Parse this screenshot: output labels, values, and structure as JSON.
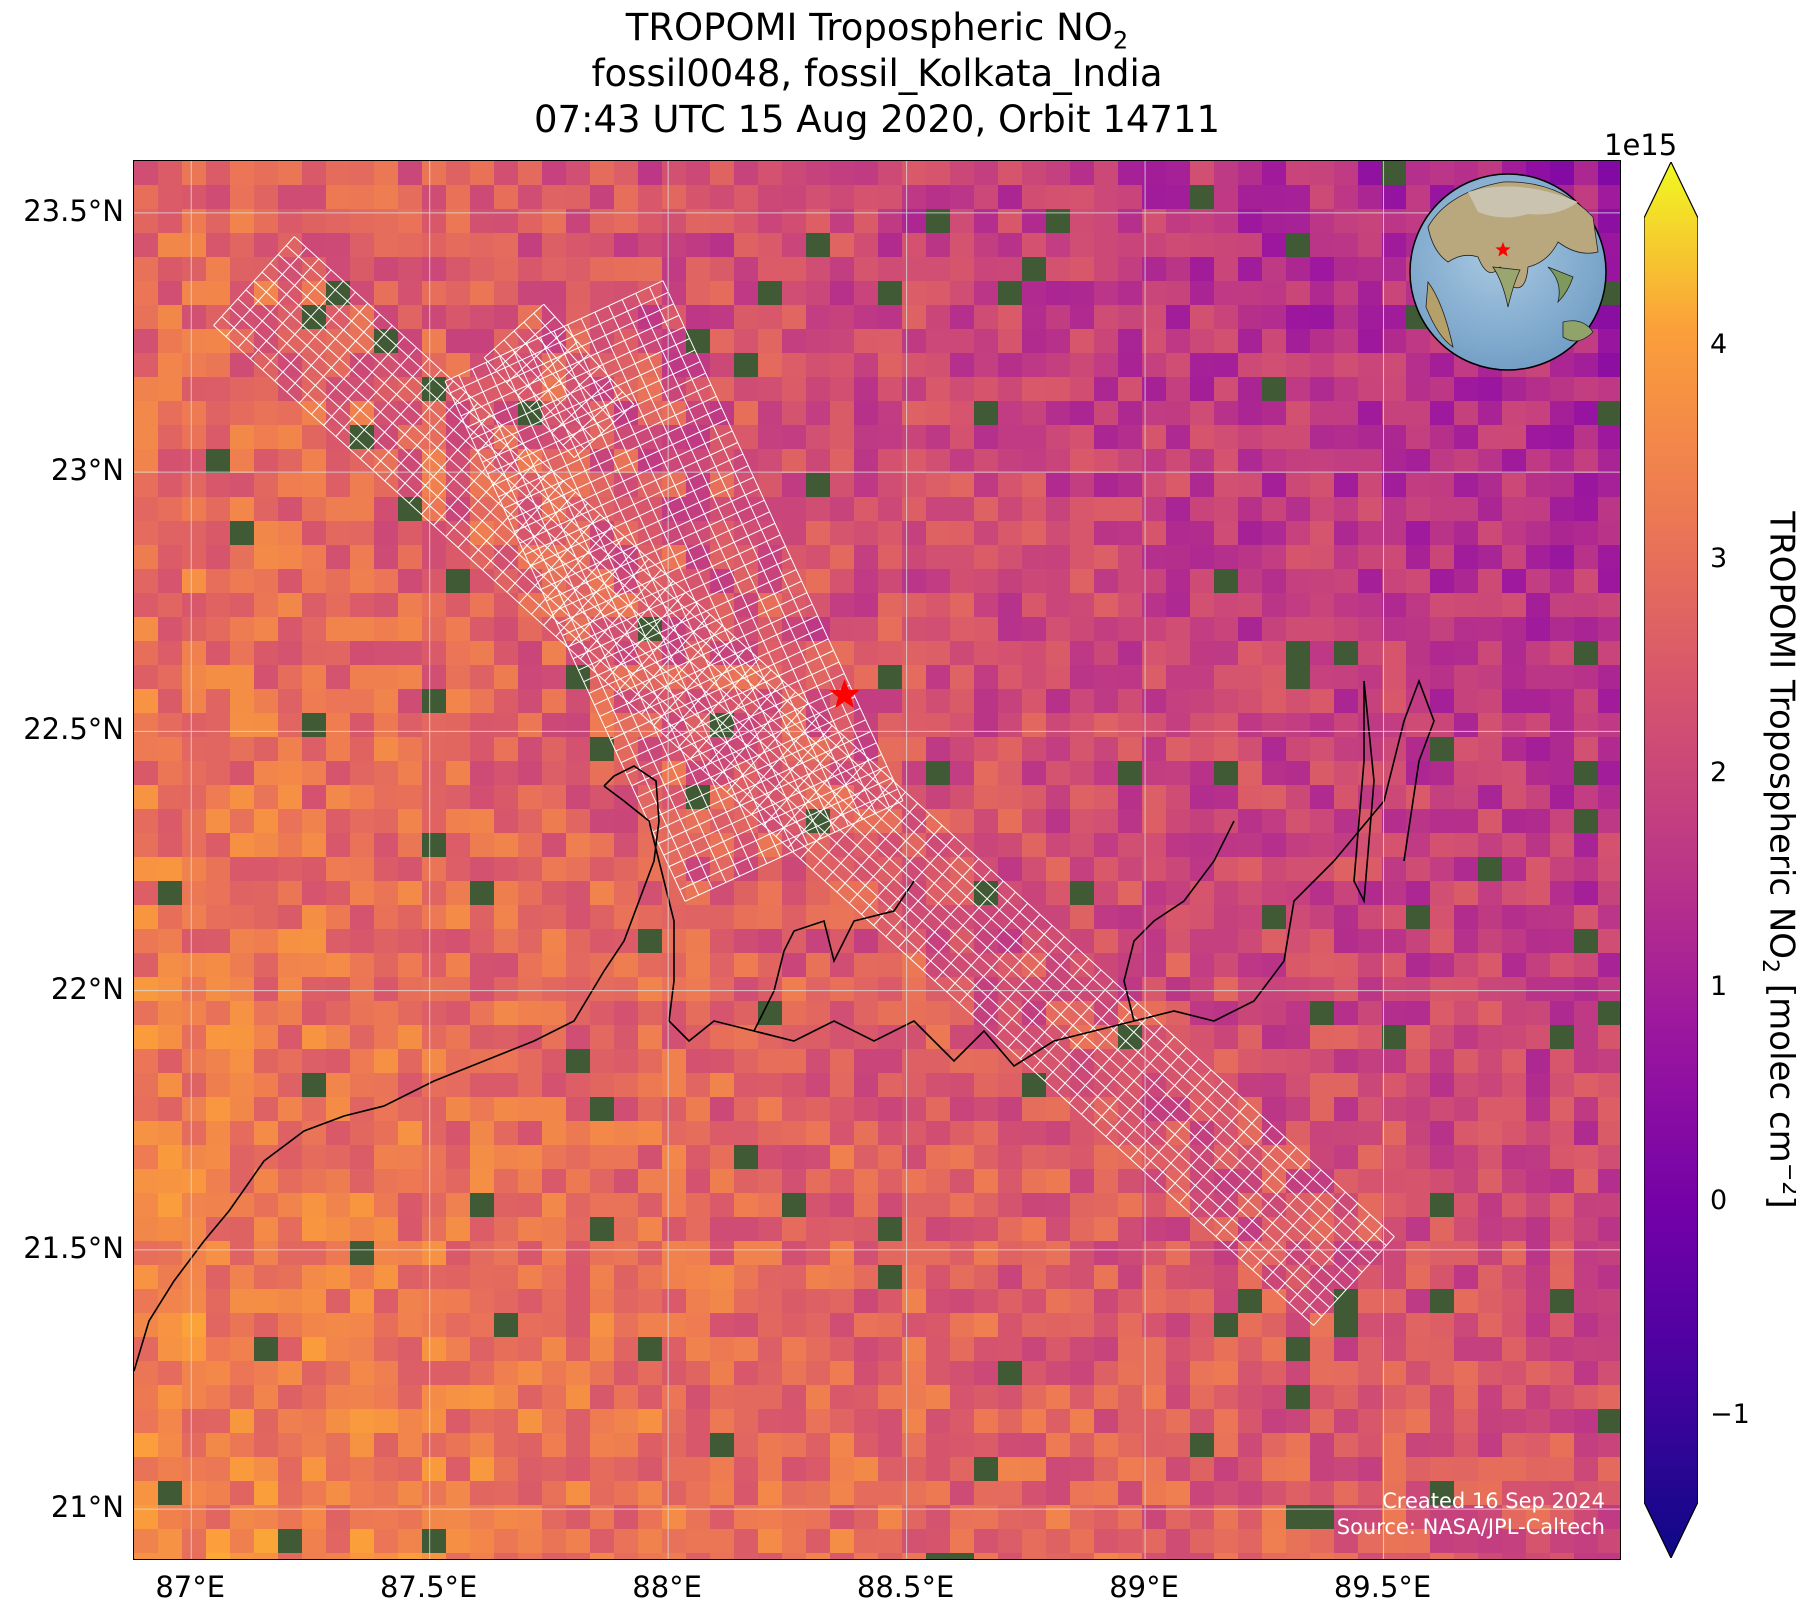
{
  "title": {
    "line1_prefix": "TROPOMI Tropospheric NO",
    "line1_sub": "2",
    "line2": "fossil0048, fossil_Kolkata_India",
    "line3": "07:43 UTC 15 Aug 2020, Orbit 14711"
  },
  "axes": {
    "lon_range": [
      86.88,
      90.0
    ],
    "lat_range": [
      20.9,
      23.6
    ],
    "x_ticks": [
      {
        "value": 87.0,
        "label": "87°E"
      },
      {
        "value": 87.5,
        "label": "87.5°E"
      },
      {
        "value": 88.0,
        "label": "88°E"
      },
      {
        "value": 88.5,
        "label": "88.5°E"
      },
      {
        "value": 89.0,
        "label": "89°E"
      },
      {
        "value": 89.5,
        "label": "89.5°E"
      }
    ],
    "y_ticks": [
      {
        "value": 23.5,
        "label": "23.5°N"
      },
      {
        "value": 23.0,
        "label": "23°N"
      },
      {
        "value": 22.5,
        "label": "22.5°N"
      },
      {
        "value": 22.0,
        "label": "22°N"
      },
      {
        "value": 21.5,
        "label": "21.5°N"
      },
      {
        "value": 21.0,
        "label": "21°N"
      }
    ],
    "grid": true
  },
  "colorbar": {
    "colormap": "plasma",
    "range": [
      -1.4,
      4.6
    ],
    "exponent_label": "1e15",
    "label_prefix": "TROPOMI Tropospheric NO",
    "label_sub": "2",
    "label_mid": " [molec cm",
    "label_sup": "−2",
    "label_suffix": "]",
    "ticks": [
      {
        "value": -1,
        "label": "−1"
      },
      {
        "value": 0,
        "label": "0"
      },
      {
        "value": 1,
        "label": "1"
      },
      {
        "value": 2,
        "label": "2"
      },
      {
        "value": 3,
        "label": "3"
      },
      {
        "value": 4,
        "label": "4"
      }
    ],
    "extend": "both"
  },
  "target": {
    "name": "fossil_Kolkata_India",
    "lon": 88.37,
    "lat": 22.57,
    "marker": "red-star"
  },
  "credits": {
    "created": "Created 16 Sep 2024",
    "source": "Source: NASA/JPL-Caltech"
  },
  "colors": {
    "marker": "#ff0000",
    "swath_outline": "#ffffff",
    "coastline": "#000000",
    "gridline": "#dddddd"
  },
  "inset_globe": {
    "center_region": "South Asia",
    "marker": "red-star"
  }
}
